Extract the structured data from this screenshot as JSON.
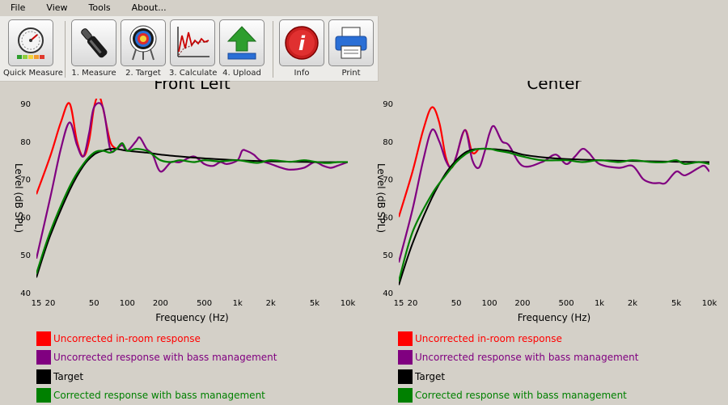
{
  "menu": [
    "File",
    "View",
    "Tools",
    "About..."
  ],
  "toolbar": {
    "buttons": [
      {
        "label": "Quick Measure",
        "icon": "gauge-icon"
      },
      {
        "label": "1. Measure",
        "icon": "microphone-icon"
      },
      {
        "label": "2. Target",
        "icon": "target-icon"
      },
      {
        "label": "3. Calculate",
        "icon": "chart-calc-icon"
      },
      {
        "label": "4. Upload",
        "icon": "upload-arrow-icon"
      },
      {
        "label": "Info",
        "icon": "info-icon"
      },
      {
        "label": "Print",
        "icon": "printer-icon"
      }
    ]
  },
  "colors": {
    "uncorrected": "#ff0000",
    "bass_managed": "#800080",
    "target": "#000000",
    "corrected": "#008000",
    "plot_background": "#d4d0c8"
  },
  "chart_data": [
    {
      "type": "line",
      "title": "Front Left",
      "xlabel": "Frequency (Hz)",
      "ylabel": "Level (dB SPL)",
      "x_scale": "log",
      "xlim": [
        15,
        10000
      ],
      "ylim": [
        40,
        90
      ],
      "x_ticks": [
        15,
        20,
        50,
        100,
        200,
        500,
        1000,
        2000,
        5000,
        10000
      ],
      "x_tick_labels": [
        "15",
        "20",
        "50",
        "100",
        "200",
        "500",
        "1k",
        "2k",
        "5k",
        "10k"
      ],
      "y_ticks": [
        40,
        50,
        60,
        70,
        80,
        90
      ],
      "series": [
        {
          "name": "Uncorrected in-room response",
          "color": "#ff0000",
          "x": [
            15,
            20,
            25,
            30,
            35,
            40,
            45,
            50,
            55,
            60,
            70,
            80
          ],
          "y": [
            66,
            76,
            85,
            90,
            80,
            76,
            80,
            89,
            92,
            89,
            80,
            78
          ]
        },
        {
          "name": "Uncorrected response with bass management",
          "color": "#800080",
          "x": [
            15,
            20,
            25,
            30,
            35,
            40,
            45,
            50,
            60,
            70,
            80,
            90,
            100,
            120,
            130,
            150,
            170,
            200,
            250,
            300,
            400,
            500,
            600,
            700,
            800,
            1000,
            1100,
            1200,
            1400,
            1600,
            2000,
            2500,
            3000,
            4000,
            5000,
            6000,
            7000,
            8000,
            10000
          ],
          "y": [
            49,
            65,
            78,
            85,
            79,
            76,
            82,
            89,
            89,
            78,
            78,
            79,
            77.5,
            80,
            81,
            78,
            76.5,
            72,
            74.5,
            74.5,
            76,
            74,
            73.5,
            74.5,
            74,
            75,
            77.5,
            77.5,
            76.5,
            75,
            74,
            73,
            72.5,
            73,
            74.5,
            73.5,
            73,
            73.5,
            74.5
          ]
        },
        {
          "name": "Target",
          "color": "#000000",
          "x": [
            15,
            20,
            30,
            40,
            50,
            60,
            70,
            80,
            100,
            150,
            200,
            300,
            500,
            1000,
            2000,
            5000,
            10000
          ],
          "y": [
            44,
            55,
            67,
            73.5,
            76.5,
            77.5,
            78,
            78,
            77.5,
            77,
            76.5,
            76,
            75.5,
            75,
            74.7,
            74.5,
            74.5
          ]
        },
        {
          "name": "Corrected response with bass management",
          "color": "#008000",
          "x": [
            15,
            20,
            30,
            40,
            50,
            60,
            70,
            80,
            90,
            100,
            120,
            150,
            170,
            200,
            250,
            300,
            400,
            500,
            700,
            1000,
            1500,
            2000,
            3000,
            4000,
            5000,
            6000,
            7000,
            8000,
            10000
          ],
          "y": [
            45,
            56,
            68,
            74,
            77,
            77.5,
            77,
            78,
            79.5,
            77.5,
            78,
            77.5,
            76.5,
            75,
            74.5,
            75,
            74.5,
            75,
            74.7,
            75,
            74.3,
            75,
            74.6,
            75,
            74.6,
            74.3,
            74.3,
            74.5,
            74.5
          ]
        }
      ]
    },
    {
      "type": "line",
      "title": "Center",
      "xlabel": "Frequency (Hz)",
      "ylabel": "Level (dB SPL)",
      "x_scale": "log",
      "xlim": [
        15,
        10000
      ],
      "ylim": [
        40,
        90
      ],
      "x_ticks": [
        15,
        20,
        50,
        100,
        200,
        500,
        1000,
        2000,
        5000,
        10000
      ],
      "x_tick_labels": [
        "15",
        "20",
        "50",
        "100",
        "200",
        "500",
        "1k",
        "2k",
        "5k",
        "10k"
      ],
      "y_ticks": [
        40,
        50,
        60,
        70,
        80,
        90
      ],
      "series": [
        {
          "name": "Uncorrected in-room response",
          "color": "#ff0000",
          "x": [
            15,
            20,
            25,
            30,
            35,
            40,
            45,
            50,
            60,
            70,
            80
          ],
          "y": [
            60,
            72,
            83,
            89,
            85,
            76,
            73,
            76,
            83,
            77,
            78
          ]
        },
        {
          "name": "Uncorrected response with bass management",
          "color": "#800080",
          "x": [
            15,
            20,
            25,
            30,
            35,
            40,
            45,
            50,
            60,
            70,
            80,
            90,
            100,
            110,
            130,
            150,
            200,
            300,
            400,
            500,
            600,
            700,
            800,
            1000,
            1500,
            2000,
            2500,
            3000,
            3500,
            4000,
            5000,
            6000,
            8000,
            9000,
            10000
          ],
          "y": [
            48,
            62,
            75,
            83,
            80,
            75,
            73,
            76,
            83,
            75,
            73,
            77,
            82,
            84,
            80,
            79,
            73.5,
            74.5,
            76.5,
            74,
            76,
            78,
            77,
            74,
            73,
            73.5,
            70,
            69,
            69,
            69,
            72,
            71,
            73,
            73.5,
            72
          ]
        },
        {
          "name": "Target",
          "color": "#000000",
          "x": [
            15,
            20,
            30,
            40,
            50,
            60,
            70,
            80,
            100,
            150,
            200,
            300,
            500,
            1000,
            2000,
            5000,
            10000
          ],
          "y": [
            42,
            53,
            65,
            71.5,
            75,
            77,
            77.8,
            78,
            78,
            77.5,
            76.5,
            75.8,
            75.3,
            75,
            74.8,
            74.6,
            74.5
          ]
        },
        {
          "name": "Corrected response with bass management",
          "color": "#008000",
          "x": [
            15,
            20,
            30,
            40,
            50,
            60,
            70,
            80,
            100,
            120,
            150,
            200,
            300,
            500,
            700,
            1000,
            1500,
            2000,
            3000,
            4000,
            5000,
            6000,
            8000,
            10000
          ],
          "y": [
            43,
            56,
            66,
            71,
            74.5,
            76.5,
            77.5,
            78,
            78,
            77.5,
            77,
            76,
            75,
            75,
            74.5,
            75,
            74.5,
            75,
            74.5,
            74.5,
            75,
            74,
            74.5,
            74
          ]
        }
      ]
    }
  ],
  "legend": [
    {
      "label": "Uncorrected in-room response",
      "color": "#ff0000"
    },
    {
      "label": "Uncorrected response with bass management",
      "color": "#800080"
    },
    {
      "label": "Target",
      "color": "#000000"
    },
    {
      "label": "Corrected response with bass management",
      "color": "#008000"
    }
  ]
}
